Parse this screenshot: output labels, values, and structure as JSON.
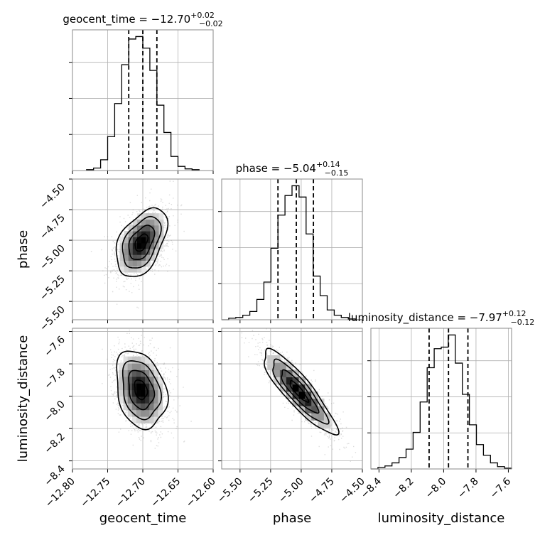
{
  "chart_data": {
    "type": "corner",
    "grid": true,
    "parameters": [
      {
        "name": "geocent_time",
        "label": "geocent_time",
        "title_main": "geocent_time = −12.70",
        "title_plus": "+0.02",
        "title_minus": "−0.02",
        "range": [
          -12.8,
          -12.6
        ],
        "ticks": [
          -12.8,
          -12.75,
          -12.7,
          -12.65,
          -12.6
        ],
        "tick_labels": [
          "−12.80",
          "−12.75",
          "−12.70",
          "−12.65",
          "−12.60"
        ],
        "median": -12.7,
        "q16": -12.72,
        "q84": -12.68,
        "hist_edges_start": -12.78,
        "hist_bin_width": 0.01,
        "hist_counts": [
          1,
          3,
          13,
          41,
          81,
          128,
          159,
          162,
          148,
          121,
          79,
          46,
          17,
          5,
          2,
          1
        ]
      },
      {
        "name": "phase",
        "label": "phase",
        "title_main": "phase = −5.04",
        "title_plus": "+0.14",
        "title_minus": "−0.15",
        "range": [
          -5.65,
          -4.5
        ],
        "ticks": [
          -5.5,
          -5.25,
          -5.0,
          -4.75,
          -4.5
        ],
        "tick_labels": [
          "−5.50",
          "−5.25",
          "−5.00",
          "−4.75",
          "−4.50"
        ],
        "y_ticks": [
          -4.5,
          -4.75,
          -5.0,
          -5.25,
          -5.5
        ],
        "y_tick_labels": [
          "−4.50",
          "−4.75",
          "−5.00",
          "−5.25",
          "−5.50"
        ],
        "median": -5.04,
        "q16": -5.19,
        "q84": -4.9,
        "hist_edges_start": -5.65,
        "hist_bin_width": 0.0575,
        "hist_counts": [
          0,
          2,
          3,
          6,
          11,
          27,
          50,
          95,
          139,
          165,
          178,
          163,
          114,
          58,
          32,
          13,
          6,
          3,
          1,
          0
        ]
      },
      {
        "name": "luminosity_distance",
        "label": "luminosity_distance",
        "title_main": "luminosity_distance = −7.97",
        "title_plus": "+0.12",
        "title_minus": "−0.12",
        "range": [
          -8.45,
          -7.58
        ],
        "ticks": [
          -8.4,
          -8.2,
          -8.0,
          -7.8,
          -7.6
        ],
        "tick_labels": [
          "−8.4",
          "−8.2",
          "−8.0",
          "−7.8",
          "−7.6"
        ],
        "y_ticks": [
          -7.6,
          -7.8,
          -8.0,
          -8.2,
          -8.4
        ],
        "y_tick_labels": [
          "−7.6",
          "−7.8",
          "−8.0",
          "−8.2",
          "−8.4"
        ],
        "median": -7.97,
        "q16": -8.09,
        "q84": -7.85,
        "hist_edges_start": -8.45,
        "hist_bin_width": 0.0435,
        "hist_counts": [
          0,
          2,
          4,
          8,
          15,
          26,
          48,
          88,
          133,
          158,
          160,
          176,
          139,
          98,
          58,
          32,
          18,
          8,
          3,
          1
        ]
      }
    ],
    "density_2d": [
      {
        "x_param": "geocent_time",
        "y_param": "phase",
        "center": [
          -12.702,
          -5.02
        ],
        "sd": [
          0.018,
          0.14
        ],
        "rho": 0.45
      },
      {
        "x_param": "geocent_time",
        "y_param": "luminosity_distance",
        "center": [
          -12.703,
          -7.96
        ],
        "sd": [
          0.018,
          0.12
        ],
        "rho": -0.25
      },
      {
        "x_param": "phase",
        "y_param": "luminosity_distance",
        "center": [
          -5.02,
          -7.97
        ],
        "sd": [
          0.15,
          0.13
        ],
        "rho": -0.88
      }
    ]
  }
}
